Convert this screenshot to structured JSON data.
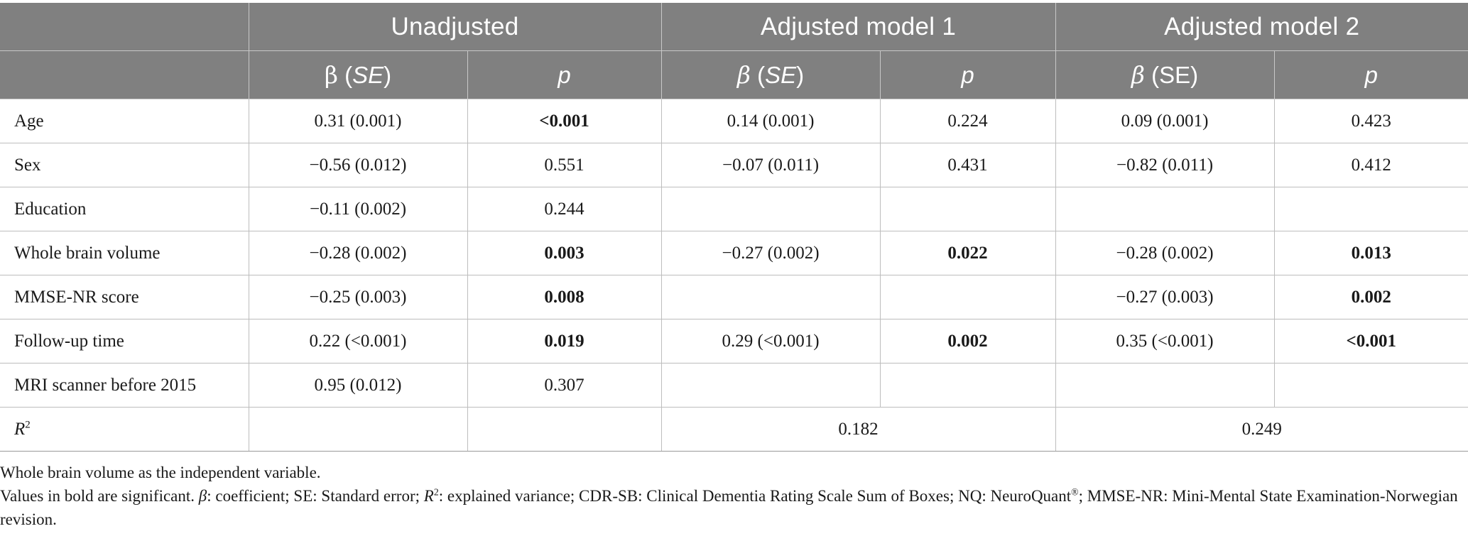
{
  "header": {
    "groups": [
      "Unadjusted",
      "Adjusted model 1",
      "Adjusted model 2"
    ],
    "sub": {
      "beta_symbol": "β",
      "se_italic": "SE",
      "se_plain": "SE",
      "p": "p"
    }
  },
  "rows": [
    {
      "label": "Age",
      "u_b": "0.31 (0.001)",
      "u_p": "<0.001",
      "m1_b": "0.14 (0.001)",
      "m1_p": "0.224",
      "m2_b": "0.09 (0.001)",
      "m2_p": "0.423"
    },
    {
      "label": "Sex",
      "u_b": "−0.56 (0.012)",
      "u_p": "0.551",
      "m1_b": "−0.07 (0.011)",
      "m1_p": "0.431",
      "m2_b": "−0.82 (0.011)",
      "m2_p": "0.412"
    },
    {
      "label": "Education",
      "u_b": "−0.11 (0.002)",
      "u_p": "0.244",
      "m1_b": "",
      "m1_p": "",
      "m2_b": "",
      "m2_p": ""
    },
    {
      "label": "Whole brain volume",
      "u_b": "−0.28 (0.002)",
      "u_p": "0.003",
      "m1_b": "−0.27 (0.002)",
      "m1_p": "0.022",
      "m2_b": "−0.28 (0.002)",
      "m2_p": "0.013"
    },
    {
      "label": "MMSE-NR score",
      "u_b": "−0.25 (0.003)",
      "u_p": "0.008",
      "m1_b": "",
      "m1_p": "",
      "m2_b": "−0.27 (0.003)",
      "m2_p": "0.002"
    },
    {
      "label": "Follow-up time",
      "u_b": "0.22 (<0.001)",
      "u_p": "0.019",
      "m1_b": "0.29 (<0.001)",
      "m1_p": "0.002",
      "m2_b": "0.35 (<0.001)",
      "m2_p": "<0.001"
    },
    {
      "label": "MRI scanner before 2015",
      "u_b": "0.95 (0.012)",
      "u_p": "0.307",
      "m1_b": "",
      "m1_p": "",
      "m2_b": "",
      "m2_p": ""
    }
  ],
  "r2_row": {
    "label_base": "R",
    "label_sup": "2",
    "m1": "0.182",
    "m2": "0.249"
  },
  "footnotes": {
    "line1": "Whole brain volume as the independent variable.",
    "line2_a": "Values in bold are significant. ",
    "line2_beta": "β",
    "line2_b": ": coefficient; SE: Standard error; ",
    "line2_r": "R",
    "line2_rsup": "2",
    "line2_c": ": explained variance; CDR-SB: Clinical Dementia Rating Scale Sum of Boxes; NQ: NeuroQuant",
    "line2_reg": "®",
    "line2_d": "; MMSE-NR: Mini-Mental State Examination-Norwegian revision."
  }
}
